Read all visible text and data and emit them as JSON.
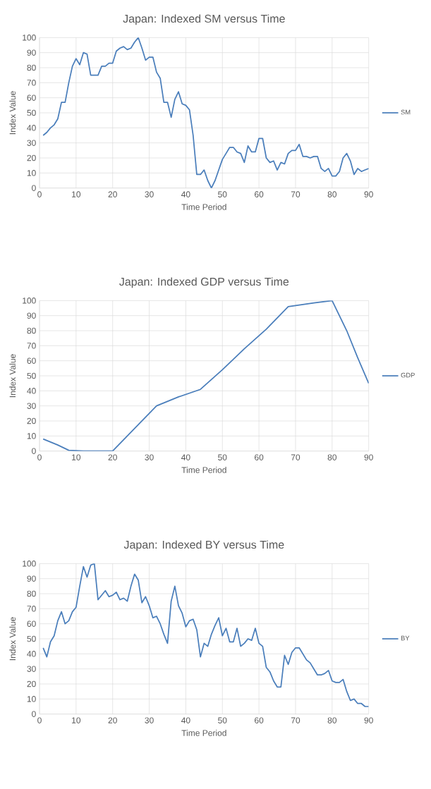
{
  "chart_data": [
    {
      "type": "line",
      "title": "Japan: Indexed SM versus Time",
      "xlabel": "Time Period",
      "ylabel": "Index Value",
      "xlim": [
        0,
        90
      ],
      "ylim": [
        0,
        100
      ],
      "xticks": [
        0,
        10,
        20,
        30,
        40,
        50,
        60,
        70,
        80,
        90
      ],
      "yticks": [
        0,
        10,
        20,
        30,
        40,
        50,
        60,
        70,
        80,
        90,
        100
      ],
      "grid": true,
      "legend": "right",
      "series": [
        {
          "name": "SM",
          "color": "#4a7ebb",
          "x": [
            1,
            2,
            3,
            4,
            5,
            6,
            7,
            8,
            9,
            10,
            11,
            12,
            13,
            14,
            15,
            16,
            17,
            18,
            19,
            20,
            21,
            22,
            23,
            24,
            25,
            26,
            27,
            28,
            29,
            30,
            31,
            32,
            33,
            34,
            35,
            36,
            37,
            38,
            39,
            40,
            41,
            42,
            43,
            44,
            45,
            46,
            47,
            48,
            49,
            50,
            51,
            52,
            53,
            54,
            55,
            56,
            57,
            58,
            59,
            60,
            61,
            62,
            63,
            64,
            65,
            66,
            67,
            68,
            69,
            70,
            71,
            72,
            73,
            74,
            75,
            76,
            77,
            78,
            79,
            80,
            81,
            82,
            83,
            84,
            85,
            86,
            87,
            88,
            89,
            90
          ],
          "values": [
            35,
            37,
            40,
            42,
            46,
            57,
            57,
            70,
            81,
            86,
            82,
            90,
            89,
            75,
            75,
            75,
            81,
            81,
            83,
            83,
            91,
            93,
            94,
            92,
            93,
            97,
            100,
            93,
            85,
            87,
            87,
            77,
            73,
            57,
            57,
            47,
            59,
            64,
            56,
            55,
            52,
            35,
            9,
            9,
            12,
            5,
            0,
            5,
            12,
            19,
            23,
            27,
            27,
            24,
            23,
            17,
            28,
            24,
            24,
            33,
            33,
            20,
            17,
            18,
            12,
            17,
            16,
            23,
            25,
            25,
            29,
            21,
            21,
            20,
            21,
            21,
            13,
            11,
            13,
            8,
            8,
            11,
            20,
            23,
            18,
            9,
            13,
            11,
            12,
            13
          ]
        }
      ]
    },
    {
      "type": "line",
      "title": "Japan: Indexed GDP versus Time",
      "xlabel": "Time Period",
      "ylabel": "Index Value",
      "xlim": [
        0,
        90
      ],
      "ylim": [
        0,
        100
      ],
      "xticks": [
        0,
        10,
        20,
        30,
        40,
        50,
        60,
        70,
        80,
        90
      ],
      "yticks": [
        0,
        10,
        20,
        30,
        40,
        50,
        60,
        70,
        80,
        90,
        100
      ],
      "grid": true,
      "legend": "right",
      "series": [
        {
          "name": "GDP",
          "color": "#4a7ebb",
          "x": [
            1,
            5,
            8,
            12,
            20,
            26,
            32,
            38,
            44,
            50,
            56,
            62,
            68,
            75,
            80,
            84,
            87,
            90
          ],
          "values": [
            8,
            4,
            0.5,
            0,
            0,
            15,
            30,
            36,
            41,
            54,
            68,
            81,
            96,
            98.5,
            100,
            80,
            62,
            45
          ]
        }
      ]
    },
    {
      "type": "line",
      "title": "Japan: Indexed BY versus Time",
      "xlabel": "Time Period",
      "ylabel": "Index Value",
      "xlim": [
        0,
        90
      ],
      "ylim": [
        0,
        100
      ],
      "xticks": [
        0,
        10,
        20,
        30,
        40,
        50,
        60,
        70,
        80,
        90
      ],
      "yticks": [
        0,
        10,
        20,
        30,
        40,
        50,
        60,
        70,
        80,
        90,
        100
      ],
      "grid": true,
      "legend": "right",
      "series": [
        {
          "name": "BY",
          "color": "#4a7ebb",
          "x": [
            1,
            2,
            3,
            4,
            5,
            6,
            7,
            8,
            9,
            10,
            11,
            12,
            13,
            14,
            15,
            16,
            17,
            18,
            19,
            20,
            21,
            22,
            23,
            24,
            25,
            26,
            27,
            28,
            29,
            30,
            31,
            32,
            33,
            34,
            35,
            36,
            37,
            38,
            39,
            40,
            41,
            42,
            43,
            44,
            45,
            46,
            47,
            48,
            49,
            50,
            51,
            52,
            53,
            54,
            55,
            56,
            57,
            58,
            59,
            60,
            61,
            62,
            63,
            64,
            65,
            66,
            67,
            68,
            69,
            70,
            71,
            72,
            73,
            74,
            75,
            76,
            77,
            78,
            79,
            80,
            81,
            82,
            83,
            84,
            85,
            86,
            87,
            88,
            89,
            90
          ],
          "values": [
            44,
            38,
            48,
            52,
            62,
            68,
            60,
            62,
            68,
            71,
            85,
            98,
            91,
            99,
            100,
            76,
            79,
            82,
            78,
            79,
            81,
            76,
            77,
            75,
            85,
            93,
            89,
            74,
            78,
            72,
            64,
            65,
            60,
            53,
            47,
            75,
            85,
            72,
            67,
            58,
            62,
            63,
            56,
            38,
            47,
            45,
            53,
            59,
            64,
            52,
            57,
            48,
            48,
            57,
            45,
            47,
            50,
            49,
            57,
            47,
            45,
            31,
            28,
            22,
            18,
            18,
            39,
            33,
            41,
            44,
            44,
            40,
            36,
            34,
            30,
            26,
            26,
            27,
            29,
            22,
            21,
            21,
            23,
            15,
            9,
            10,
            7,
            7,
            5,
            5
          ]
        }
      ]
    }
  ]
}
